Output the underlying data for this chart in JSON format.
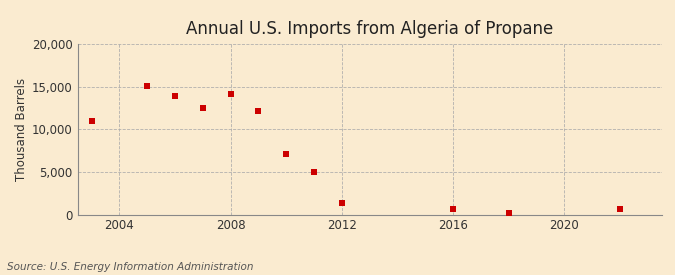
{
  "title": "Annual U.S. Imports from Algeria of Propane",
  "ylabel": "Thousand Barrels",
  "source": "Source: U.S. Energy Information Administration",
  "years": [
    2003,
    2005,
    2006,
    2007,
    2008,
    2009,
    2010,
    2011,
    2012,
    2016,
    2018,
    2022
  ],
  "values": [
    11000,
    15100,
    13900,
    12500,
    14100,
    12100,
    7100,
    5000,
    1400,
    600,
    200,
    600
  ],
  "marker_color": "#cc0000",
  "background_color": "#faebd0",
  "plot_background": "#faebd0",
  "grid_color": "#aaaaaa",
  "xlim": [
    2002.5,
    2023.5
  ],
  "ylim": [
    0,
    20000
  ],
  "yticks": [
    0,
    5000,
    10000,
    15000,
    20000
  ],
  "xticks": [
    2004,
    2008,
    2012,
    2016,
    2020
  ],
  "title_fontsize": 12,
  "axis_fontsize": 8.5,
  "source_fontsize": 7.5
}
